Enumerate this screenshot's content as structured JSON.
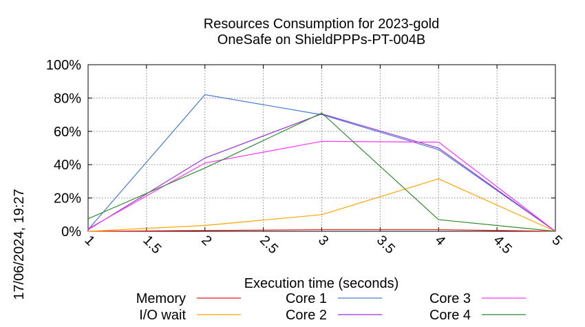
{
  "chart_data": {
    "type": "line",
    "title": "Resources Consumption for 2023-gold",
    "subtitle": "OneSafe on ShieldPPPs-PT-004B",
    "xlabel": "Execution time (seconds)",
    "timestamp": "17/06/2024, 19:27",
    "xlim": [
      1,
      5
    ],
    "ylim": [
      0,
      100
    ],
    "x_ticks": [
      "1",
      "1.5",
      "2",
      "2.5",
      "3",
      "3.5",
      "4",
      "4.5",
      "5"
    ],
    "y_ticks": [
      "0%",
      "20%",
      "40%",
      "60%",
      "80%",
      "100%"
    ],
    "grid": true,
    "legend_position": "bottom",
    "x": [
      1,
      2,
      3,
      4,
      5
    ],
    "series": [
      {
        "name": "Memory",
        "color": "#e41a1c",
        "values": [
          0,
          0.5,
          1,
          1,
          0
        ]
      },
      {
        "name": "I/O wait",
        "color": "#ffa500",
        "values": [
          0,
          3.5,
          10,
          31.5,
          0
        ]
      },
      {
        "name": "Core 1",
        "color": "#4a7bd0",
        "values": [
          1,
          82,
          70,
          49,
          0
        ]
      },
      {
        "name": "Core 2",
        "color": "#9a33d8",
        "values": [
          1,
          44,
          70.5,
          50,
          0
        ]
      },
      {
        "name": "Core 3",
        "color": "#ff33ff",
        "values": [
          1.5,
          41,
          54,
          53.5,
          0
        ]
      },
      {
        "name": "Core 4",
        "color": "#2e8b2e",
        "values": [
          7.5,
          38,
          71,
          7,
          0
        ]
      }
    ]
  }
}
